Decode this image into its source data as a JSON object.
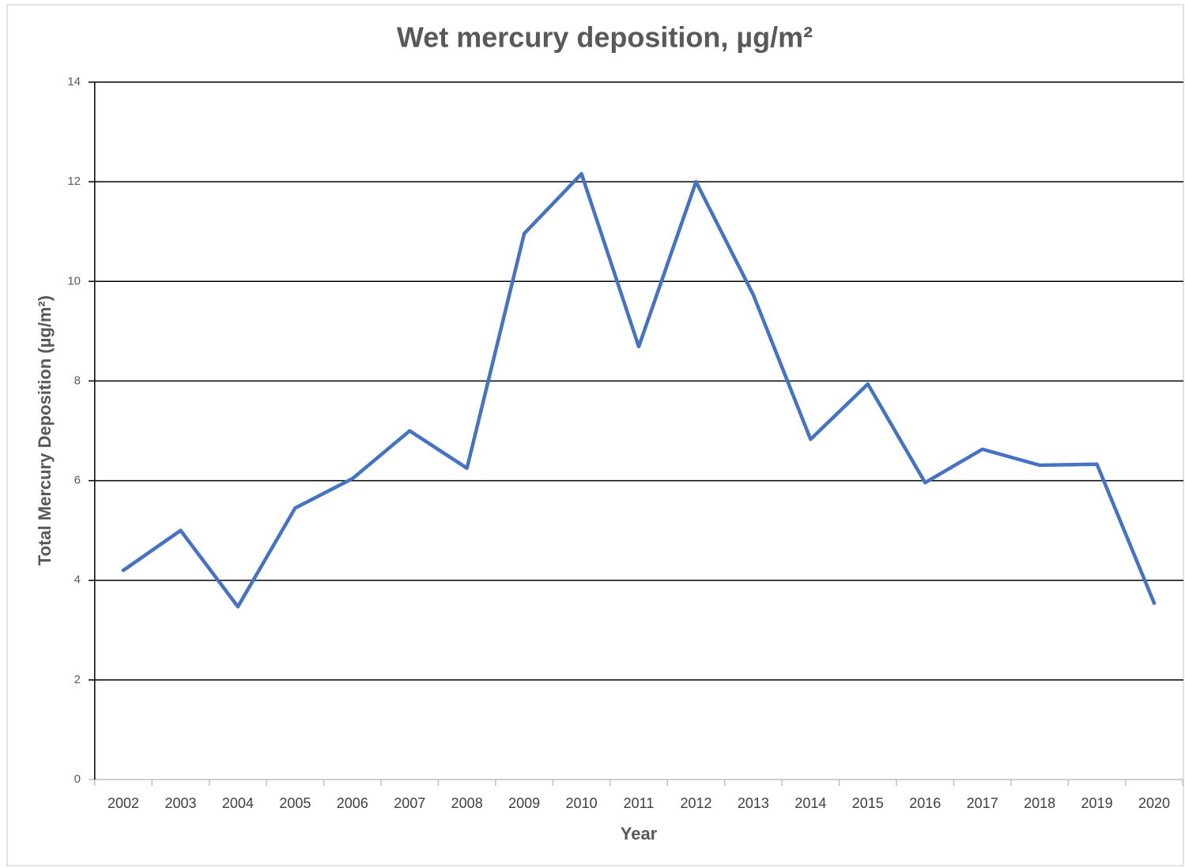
{
  "chart_data": {
    "type": "line",
    "title": "Wet mercury deposition, µg/m²",
    "x_label": "Year",
    "y_label": "Total Mercury Deposition (µg/m²)",
    "categories": [
      "2002",
      "2003",
      "2004",
      "2005",
      "2006",
      "2007",
      "2008",
      "2009",
      "2010",
      "2011",
      "2012",
      "2013",
      "2014",
      "2015",
      "2016",
      "2017",
      "2018",
      "2019",
      "2020"
    ],
    "series": [
      {
        "name": "Total Mercury Deposition",
        "color": "#4472c4",
        "values": [
          4.2,
          5.0,
          3.47,
          5.45,
          6.04,
          7.0,
          6.25,
          10.96,
          12.16,
          8.69,
          12.0,
          9.73,
          6.83,
          7.94,
          5.96,
          6.63,
          6.31,
          6.33,
          3.54
        ]
      }
    ],
    "ylim": [
      0,
      14
    ],
    "yticks": [
      0,
      2,
      4,
      6,
      8,
      10,
      12,
      14
    ],
    "grid": true
  }
}
